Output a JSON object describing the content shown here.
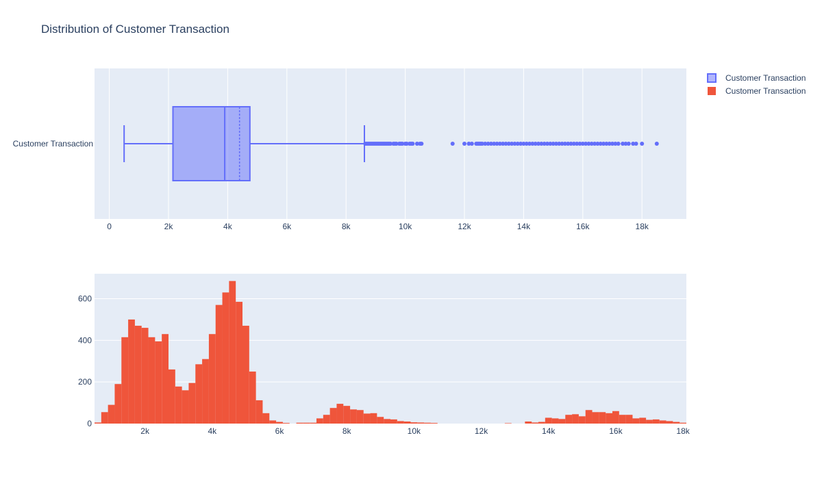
{
  "chart_data": {
    "title": "Distribution of Customer Transaction",
    "colors": {
      "box": "#636efa",
      "histogram": "#ef553b",
      "plot_bg": "#e5ecf6",
      "grid": "#ffffff"
    },
    "legend": {
      "placement": "top-right",
      "items": [
        {
          "label": "Customer Transaction",
          "color": "#636efa",
          "kind": "box"
        },
        {
          "label": "Customer Transaction",
          "color": "#ef553b",
          "kind": "histogram"
        }
      ]
    },
    "box": {
      "type": "box",
      "orientation": "horizontal",
      "category": "Customer Transaction",
      "xlim": [
        -500,
        19500
      ],
      "x_ticks": [
        0,
        2000,
        4000,
        6000,
        8000,
        10000,
        12000,
        14000,
        16000,
        18000
      ],
      "x_tick_labels": [
        "0",
        "2k",
        "4k",
        "6k",
        "8k",
        "10k",
        "12k",
        "14k",
        "16k",
        "18k"
      ],
      "grid": true,
      "lower_fence": 500,
      "q1": 2150,
      "median": 3900,
      "mean": 4400,
      "q3": 4750,
      "upper_fence": 8620,
      "outliers": [
        8650,
        8700,
        8750,
        8800,
        8850,
        8900,
        8950,
        9000,
        9050,
        9100,
        9150,
        9200,
        9250,
        9300,
        9350,
        9400,
        9450,
        9500,
        9600,
        9650,
        9700,
        9800,
        9850,
        9900,
        10000,
        10050,
        10150,
        10200,
        10250,
        10400,
        10500,
        10550,
        11600,
        12000,
        12150,
        12250,
        12400,
        12450,
        12500,
        12550,
        12600,
        12700,
        12800,
        12900,
        13000,
        13100,
        13200,
        13300,
        13400,
        13500,
        13600,
        13700,
        13800,
        13900,
        14000,
        14100,
        14200,
        14300,
        14400,
        14500,
        14600,
        14700,
        14800,
        14900,
        15000,
        15100,
        15200,
        15300,
        15400,
        15500,
        15600,
        15700,
        15800,
        15900,
        16000,
        16100,
        16200,
        16300,
        16400,
        16500,
        16600,
        16700,
        16800,
        16900,
        17000,
        17100,
        17200,
        17350,
        17450,
        17550,
        17700,
        17800,
        18000,
        18500
      ]
    },
    "histogram": {
      "type": "bar",
      "xlim": [
        500,
        18100
      ],
      "ylim": [
        0,
        720
      ],
      "x_ticks": [
        2000,
        4000,
        6000,
        8000,
        10000,
        12000,
        14000,
        16000,
        18000
      ],
      "x_tick_labels": [
        "2k",
        "4k",
        "6k",
        "8k",
        "10k",
        "12k",
        "14k",
        "16k",
        "18k"
      ],
      "y_ticks": [
        0,
        200,
        400,
        600
      ],
      "y_tick_labels": [
        "0",
        "200",
        "400",
        "600"
      ],
      "grid": true,
      "bin_start": 500,
      "bin_width": 200,
      "values": [
        5,
        55,
        90,
        190,
        415,
        500,
        470,
        460,
        415,
        395,
        430,
        260,
        178,
        160,
        195,
        285,
        310,
        430,
        570,
        630,
        685,
        585,
        470,
        250,
        112,
        50,
        15,
        8,
        3,
        0,
        4,
        4,
        4,
        25,
        42,
        75,
        95,
        85,
        68,
        65,
        48,
        50,
        32,
        22,
        20,
        12,
        10,
        6,
        5,
        4,
        3,
        0,
        0,
        0,
        0,
        0,
        0,
        0,
        0,
        0,
        0,
        2,
        0,
        0,
        10,
        5,
        8,
        28,
        25,
        22,
        42,
        45,
        35,
        65,
        55,
        55,
        50,
        60,
        42,
        42,
        25,
        28,
        18,
        20,
        15,
        12,
        8,
        4,
        3,
        3,
        3,
        3,
        3,
        2,
        0,
        0,
        0,
        0,
        0
      ]
    }
  }
}
